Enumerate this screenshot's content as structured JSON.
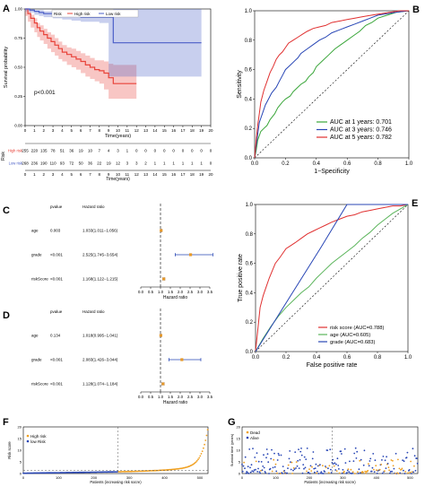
{
  "panels": {
    "A": "A",
    "B": "B",
    "C": "C",
    "D": "D",
    "E": "E",
    "F": "F",
    "G": "G"
  },
  "chart_data": [
    {
      "id": "A",
      "type": "line",
      "xlabel": "Time(years)",
      "ylabel": "Survival probability",
      "xlim": [
        0,
        20
      ],
      "ylim": [
        0,
        1
      ],
      "xticks": [
        0,
        1,
        2,
        3,
        4,
        5,
        6,
        7,
        8,
        9,
        10,
        11,
        12,
        13,
        14,
        15,
        16,
        17,
        18,
        19,
        20
      ],
      "yticks": [
        0.0,
        0.25,
        0.5,
        0.75,
        1.0
      ],
      "annotation": "p<0.001",
      "legend": [
        "Risk",
        "High risk",
        "Low risk"
      ],
      "series": [
        {
          "name": "High risk",
          "color": "#e8433a",
          "x": [
            0,
            0.3,
            0.6,
            1,
            1.3,
            1.6,
            2,
            2.4,
            2.8,
            3.2,
            3.6,
            4,
            4.5,
            5,
            5.5,
            6,
            6.5,
            7,
            7.5,
            8,
            8.5,
            9,
            9.5,
            10,
            10.5,
            11,
            11.5,
            12
          ],
          "y": [
            1,
            0.96,
            0.92,
            0.88,
            0.84,
            0.81,
            0.78,
            0.75,
            0.72,
            0.69,
            0.66,
            0.63,
            0.61,
            0.59,
            0.57,
            0.55,
            0.52,
            0.5,
            0.48,
            0.47,
            0.45,
            0.41,
            0.36,
            0.36,
            0.36,
            0.36,
            0.36,
            0.36
          ],
          "lower": [
            1,
            0.94,
            0.89,
            0.84,
            0.8,
            0.76,
            0.73,
            0.7,
            0.66,
            0.63,
            0.6,
            0.57,
            0.55,
            0.52,
            0.5,
            0.48,
            0.45,
            0.42,
            0.4,
            0.38,
            0.36,
            0.31,
            0.23,
            0.23,
            0.23,
            0.23,
            0.23,
            0.23
          ],
          "upper": [
            1,
            0.98,
            0.95,
            0.92,
            0.88,
            0.86,
            0.83,
            0.8,
            0.78,
            0.75,
            0.72,
            0.69,
            0.67,
            0.66,
            0.64,
            0.62,
            0.6,
            0.58,
            0.56,
            0.56,
            0.55,
            0.53,
            0.52,
            0.52,
            0.52,
            0.52,
            0.52,
            0.52
          ]
        },
        {
          "name": "Low risk",
          "color": "#4a5fc7",
          "x": [
            0,
            0.5,
            1,
            1.5,
            2,
            3,
            4,
            5,
            6,
            7,
            8,
            9,
            9.5,
            10,
            11,
            12,
            13,
            14,
            15,
            16,
            17,
            18,
            19
          ],
          "y": [
            1,
            0.99,
            0.98,
            0.97,
            0.96,
            0.95,
            0.94,
            0.94,
            0.93,
            0.93,
            0.93,
            0.93,
            0.71,
            0.71,
            0.71,
            0.71,
            0.71,
            0.71,
            0.71,
            0.71,
            0.71,
            0.71,
            0.71
          ],
          "lower": [
            1,
            0.98,
            0.97,
            0.95,
            0.94,
            0.93,
            0.92,
            0.91,
            0.9,
            0.89,
            0.89,
            0.88,
            0.42,
            0.42,
            0.42,
            0.42,
            0.42,
            0.42,
            0.42,
            0.42,
            0.42,
            0.42,
            0.42
          ],
          "upper": [
            1,
            1,
            0.99,
            0.99,
            0.98,
            0.98,
            0.97,
            0.97,
            0.97,
            0.97,
            0.97,
            0.97,
            1,
            1,
            1,
            1,
            1,
            1,
            1,
            1,
            1,
            1,
            1
          ]
        }
      ],
      "risk_table": {
        "title": "Risk",
        "rows": [
          {
            "name": "High risk",
            "color": "#e8433a",
            "counts": [
              "255",
              "220",
              "135",
              "78",
              "51",
              "36",
              "19",
              "10",
              "7",
              "4",
              "3",
              "1",
              "0",
              "0",
              "0",
              "0",
              "0",
              "0",
              "0",
              "0",
              "0"
            ]
          },
          {
            "name": "Low risk",
            "color": "#4a5fc7",
            "counts": [
              "268",
              "236",
              "190",
              "110",
              "93",
              "72",
              "50",
              "36",
              "22",
              "19",
              "12",
              "3",
              "3",
              "2",
              "1",
              "1",
              "1",
              "1",
              "1",
              "1",
              "0"
            ]
          }
        ],
        "xlabel": "Time(years)"
      }
    },
    {
      "id": "B",
      "type": "line",
      "xlabel": "1−Specificity",
      "ylabel": "Sensitivity",
      "xlim": [
        0,
        1
      ],
      "ylim": [
        0,
        1
      ],
      "ticks": [
        "0.0",
        "0.2",
        "0.4",
        "0.6",
        "0.8",
        "1.0"
      ],
      "legend_text": [
        "AUC at 1 years: 0.701",
        "AUC at 3 years: 0.746",
        "AUC at 5 years: 0.782"
      ],
      "series": [
        {
          "name": "AUC at 1 years: 0.701",
          "color": "#3aa63a",
          "x": [
            0,
            0.01,
            0.02,
            0.04,
            0.06,
            0.08,
            0.1,
            0.13,
            0.15,
            0.18,
            0.2,
            0.23,
            0.25,
            0.28,
            0.3,
            0.33,
            0.35,
            0.38,
            0.4,
            0.44,
            0.48,
            0.52,
            0.56,
            0.6,
            0.64,
            0.68,
            0.72,
            0.76,
            0.8,
            0.86,
            0.92,
            1
          ],
          "y": [
            0,
            0.05,
            0.12,
            0.18,
            0.2,
            0.22,
            0.26,
            0.3,
            0.34,
            0.38,
            0.4,
            0.42,
            0.45,
            0.48,
            0.5,
            0.52,
            0.55,
            0.58,
            0.62,
            0.66,
            0.7,
            0.74,
            0.77,
            0.8,
            0.83,
            0.86,
            0.9,
            0.92,
            0.95,
            0.97,
            0.99,
            1
          ]
        },
        {
          "name": "AUC at 3 years: 0.746",
          "color": "#2846b5",
          "x": [
            0,
            0.01,
            0.02,
            0.03,
            0.05,
            0.07,
            0.09,
            0.11,
            0.14,
            0.16,
            0.18,
            0.2,
            0.23,
            0.26,
            0.28,
            0.3,
            0.34,
            0.38,
            0.42,
            0.46,
            0.5,
            0.55,
            0.6,
            0.65,
            0.7,
            0.75,
            0.8,
            0.86,
            0.92,
            1
          ],
          "y": [
            0,
            0.08,
            0.16,
            0.24,
            0.3,
            0.36,
            0.4,
            0.44,
            0.48,
            0.52,
            0.56,
            0.6,
            0.63,
            0.66,
            0.68,
            0.71,
            0.74,
            0.77,
            0.8,
            0.82,
            0.85,
            0.87,
            0.89,
            0.91,
            0.93,
            0.95,
            0.97,
            0.98,
            0.99,
            1
          ]
        },
        {
          "name": "AUC at 5 years: 0.782",
          "color": "#e03030",
          "x": [
            0,
            0.01,
            0.02,
            0.03,
            0.04,
            0.06,
            0.08,
            0.1,
            0.12,
            0.14,
            0.16,
            0.18,
            0.2,
            0.22,
            0.25,
            0.28,
            0.31,
            0.34,
            0.38,
            0.42,
            0.46,
            0.5,
            0.55,
            0.6,
            0.65,
            0.7,
            0.76,
            0.82,
            0.88,
            0.94,
            1
          ],
          "y": [
            0,
            0.12,
            0.22,
            0.3,
            0.38,
            0.46,
            0.52,
            0.58,
            0.62,
            0.67,
            0.7,
            0.72,
            0.75,
            0.78,
            0.8,
            0.82,
            0.84,
            0.86,
            0.88,
            0.89,
            0.9,
            0.92,
            0.93,
            0.94,
            0.95,
            0.96,
            0.97,
            0.98,
            0.99,
            1,
            1
          ]
        }
      ]
    },
    {
      "id": "C",
      "type": "scatter",
      "columns": [
        "pvalue",
        "Hazard ratio"
      ],
      "xlabel": "Hazard ratio",
      "xlim": [
        0,
        3.5
      ],
      "xticks": [
        "0.0",
        "0.5",
        "1.0",
        "1.5",
        "2.0",
        "2.5",
        "3.0",
        "3.5"
      ],
      "rows": [
        {
          "name": "age",
          "pvalue": "0.003",
          "hr_text": "1.033(1.011−1.056)",
          "hr": 1.033,
          "lo": 1.011,
          "hi": 1.056
        },
        {
          "name": "grade",
          "pvalue": "<0.001",
          "hr_text": "2.525(1.745−3.654)",
          "hr": 2.525,
          "lo": 1.745,
          "hi": 3.654
        },
        {
          "name": "riskScore",
          "pvalue": "<0.001",
          "hr_text": "1.168(1.122−1.215)",
          "hr": 1.168,
          "lo": 1.122,
          "hi": 1.215
        }
      ]
    },
    {
      "id": "D",
      "type": "scatter",
      "columns": [
        "pvalue",
        "Hazard ratio"
      ],
      "xlabel": "Hazard ratio",
      "xlim": [
        0,
        3.5
      ],
      "xticks": [
        "0.0",
        "0.5",
        "1.0",
        "1.5",
        "2.0",
        "2.5",
        "3.0",
        "3.5"
      ],
      "rows": [
        {
          "name": "age",
          "pvalue": "0.134",
          "hr_text": "1.018(0.995−1.041)",
          "hr": 1.018,
          "lo": 0.995,
          "hi": 1.041
        },
        {
          "name": "grade",
          "pvalue": "<0.001",
          "hr_text": "2.083(1.426−3.044)",
          "hr": 2.083,
          "lo": 1.426,
          "hi": 3.044
        },
        {
          "name": "riskScore",
          "pvalue": "<0.001",
          "hr_text": "1.128(1.074−1.184)",
          "hr": 1.128,
          "lo": 1.074,
          "hi": 1.184
        }
      ]
    },
    {
      "id": "E",
      "type": "line",
      "xlabel": "False positive rate",
      "ylabel": "True positive rate",
      "xlim": [
        0,
        1
      ],
      "ylim": [
        0,
        1
      ],
      "ticks": [
        "0.0",
        "0.2",
        "0.4",
        "0.6",
        "0.8",
        "1.0"
      ],
      "legend_text": [
        "risk score (AUC=0.788)",
        "age (AUC=0.605)",
        "grade (AUC=0.683)"
      ],
      "series": [
        {
          "name": "risk score (AUC=0.788)",
          "color": "#e03030",
          "x": [
            0,
            0.01,
            0.02,
            0.03,
            0.05,
            0.07,
            0.09,
            0.11,
            0.13,
            0.16,
            0.18,
            0.2,
            0.23,
            0.26,
            0.3,
            0.34,
            0.38,
            0.42,
            0.46,
            0.5,
            0.55,
            0.6,
            0.65,
            0.7,
            0.75,
            0.8,
            0.85,
            0.9,
            0.95,
            1
          ],
          "y": [
            0,
            0.1,
            0.2,
            0.3,
            0.38,
            0.44,
            0.5,
            0.55,
            0.6,
            0.64,
            0.67,
            0.7,
            0.72,
            0.74,
            0.77,
            0.8,
            0.82,
            0.84,
            0.86,
            0.88,
            0.9,
            0.92,
            0.93,
            0.95,
            0.96,
            0.97,
            0.98,
            0.99,
            0.99,
            1
          ]
        },
        {
          "name": "age (AUC=0.605)",
          "color": "#5ab45a",
          "x": [
            0,
            0.05,
            0.1,
            0.15,
            0.2,
            0.25,
            0.3,
            0.35,
            0.4,
            0.45,
            0.5,
            0.55,
            0.6,
            0.65,
            0.7,
            0.75,
            0.8,
            0.85,
            0.9,
            0.95,
            1
          ],
          "y": [
            0,
            0.09,
            0.17,
            0.24,
            0.3,
            0.35,
            0.4,
            0.44,
            0.5,
            0.55,
            0.6,
            0.64,
            0.68,
            0.72,
            0.77,
            0.81,
            0.86,
            0.9,
            0.94,
            0.97,
            1
          ]
        },
        {
          "name": "grade (AUC=0.683)",
          "color": "#2846b5",
          "x": [
            0,
            0.43,
            0.6,
            1
          ],
          "y": [
            0,
            0.71,
            1,
            1
          ]
        }
      ]
    },
    {
      "id": "F",
      "type": "scatter",
      "xlabel": "Patients (increasing risk socre)",
      "ylabel": "Risk score",
      "xlim": [
        0,
        523
      ],
      "ylim": [
        0,
        20
      ],
      "yticks": [
        "0",
        "5",
        "10",
        "15",
        "20"
      ],
      "xticks": [
        "0",
        "100",
        "200",
        "300",
        "400",
        "500"
      ],
      "legend_text": [
        "High risk",
        "low Risk"
      ],
      "colors": {
        "high": "#f0a020",
        "low": "#2846b5"
      },
      "cutoff_index": 268,
      "cutoff_value": 1.3
    },
    {
      "id": "G",
      "type": "scatter",
      "xlabel": "Patients (increasing risk socre)",
      "ylabel": "Survival time (years)",
      "xlim": [
        0,
        523
      ],
      "ylim": [
        0,
        20
      ],
      "yticks": [
        "0",
        "5",
        "10",
        "15",
        "20"
      ],
      "xticks": [
        "0",
        "100",
        "200",
        "300",
        "400",
        "500"
      ],
      "legend_text": [
        "Dead",
        "Alive"
      ],
      "colors": {
        "dead": "#f0a020",
        "alive": "#2846b5"
      },
      "cutoff_index": 268
    }
  ]
}
